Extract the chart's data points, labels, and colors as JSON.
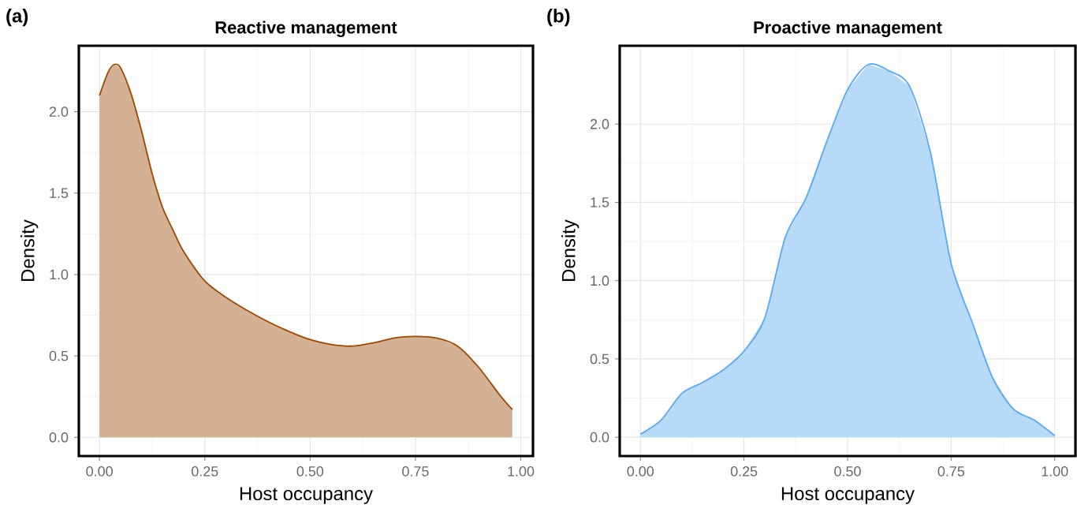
{
  "chart_data": [
    {
      "type": "area",
      "title": "Reactive management",
      "xlabel": "Host occupancy",
      "ylabel": "Density",
      "annotations": [
        "(a)"
      ],
      "x": [
        0,
        0.02,
        0.035,
        0.05,
        0.075,
        0.1,
        0.125,
        0.15,
        0.175,
        0.2,
        0.25,
        0.3,
        0.35,
        0.4,
        0.45,
        0.5,
        0.55,
        0.6,
        0.65,
        0.7,
        0.75,
        0.8,
        0.85,
        0.9,
        0.95,
        0.98
      ],
      "series": [
        {
          "color": "#9a4a06",
          "values": [
            2.1,
            2.24,
            2.29,
            2.27,
            2.11,
            1.88,
            1.62,
            1.41,
            1.27,
            1.14,
            0.96,
            0.86,
            0.78,
            0.71,
            0.65,
            0.6,
            0.57,
            0.56,
            0.58,
            0.61,
            0.62,
            0.61,
            0.56,
            0.43,
            0.26,
            0.17
          ]
        }
      ],
      "xlim": [
        -0.049,
        1.029
      ],
      "ylim": [
        -0.115,
        2.405
      ],
      "xticks": [
        {
          "value": 0,
          "label": "0.00"
        },
        {
          "value": 0.25,
          "label": "0.25"
        },
        {
          "value": 0.5,
          "label": "0.50"
        },
        {
          "value": 0.75,
          "label": "0.75"
        },
        {
          "value": 1,
          "label": "1.00"
        }
      ],
      "yticks": [
        {
          "value": 0,
          "label": "0.0"
        },
        {
          "value": 0.5,
          "label": "0.5"
        },
        {
          "value": 1,
          "label": "1.0"
        },
        {
          "value": 1.5,
          "label": "1.5"
        },
        {
          "value": 2,
          "label": "2.0"
        }
      ],
      "grid": true
    },
    {
      "type": "area",
      "title": "Proactive management",
      "xlabel": "Host occupancy",
      "ylabel": "Density",
      "annotations": [
        "(b)"
      ],
      "x": [
        0,
        0.05,
        0.1,
        0.15,
        0.2,
        0.25,
        0.3,
        0.35,
        0.4,
        0.45,
        0.5,
        0.55,
        0.6,
        0.65,
        0.7,
        0.75,
        0.8,
        0.85,
        0.9,
        0.95,
        1
      ],
      "series": [
        {
          "color": "#5aa8f0",
          "values": [
            0.02,
            0.11,
            0.28,
            0.35,
            0.43,
            0.55,
            0.76,
            1.28,
            1.53,
            1.89,
            2.22,
            2.38,
            2.34,
            2.24,
            1.82,
            1.11,
            0.74,
            0.38,
            0.18,
            0.11,
            0.01
          ]
        }
      ],
      "xlim": [
        -0.05,
        1.05
      ],
      "ylim": [
        -0.12,
        2.5
      ],
      "xticks": [
        {
          "value": 0,
          "label": "0.00"
        },
        {
          "value": 0.25,
          "label": "0.25"
        },
        {
          "value": 0.5,
          "label": "0.50"
        },
        {
          "value": 0.75,
          "label": "0.75"
        },
        {
          "value": 1,
          "label": "1.00"
        }
      ],
      "yticks": [
        {
          "value": 0,
          "label": "0.0"
        },
        {
          "value": 0.5,
          "label": "0.5"
        },
        {
          "value": 1,
          "label": "1.0"
        },
        {
          "value": 1.5,
          "label": "1.5"
        },
        {
          "value": 2,
          "label": "2.0"
        }
      ],
      "grid": true
    }
  ]
}
